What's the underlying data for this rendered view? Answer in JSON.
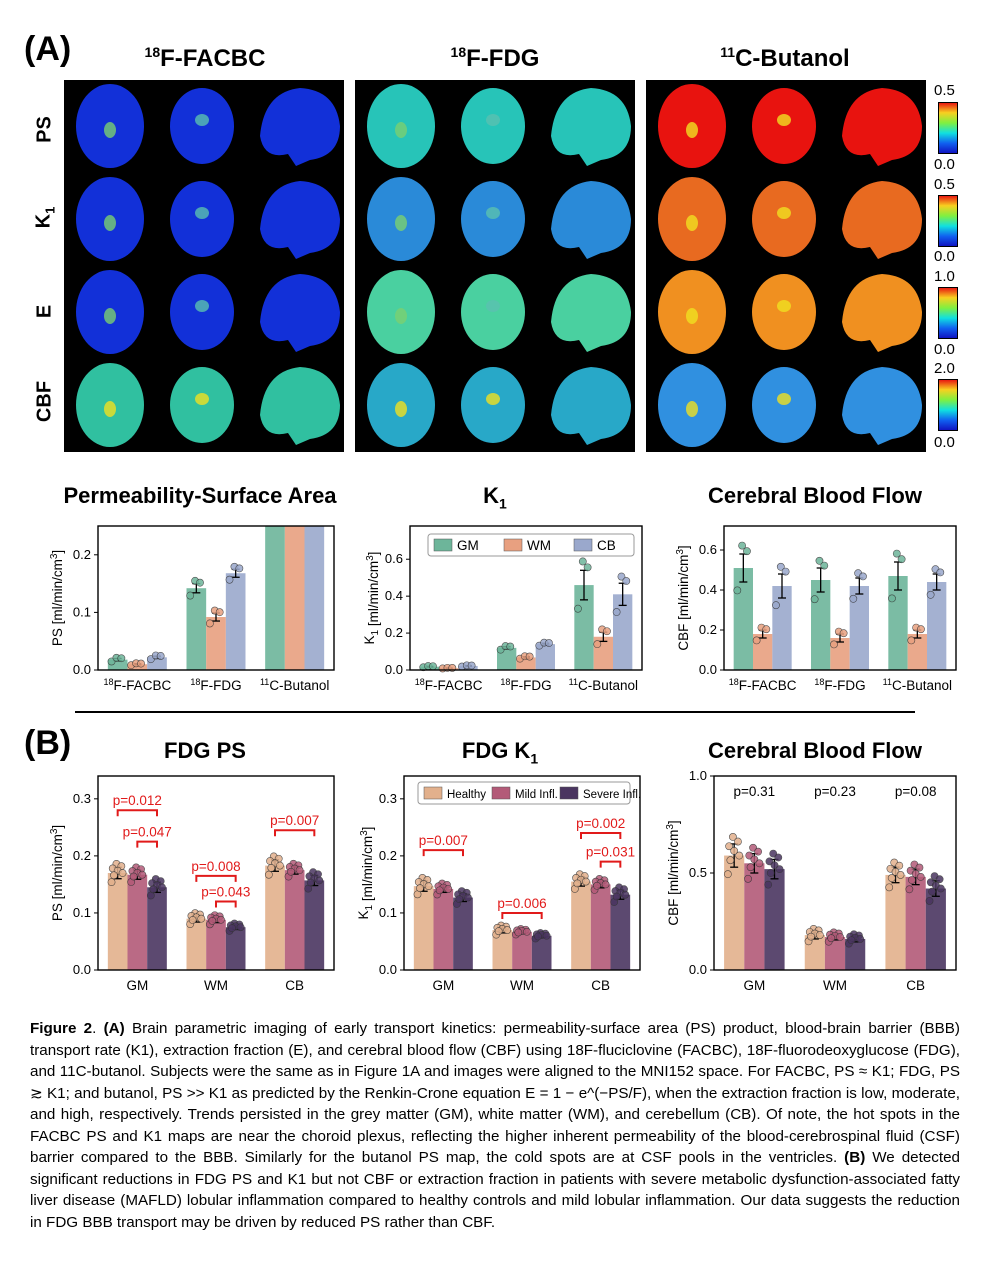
{
  "panelA": {
    "letter": "(A)",
    "tracers": [
      {
        "sup": "18",
        "name": "F-FACBC"
      },
      {
        "sup": "18",
        "name": "F-FDG"
      },
      {
        "sup": "11",
        "name": "C-Butanol"
      }
    ],
    "row_labels": [
      "PS",
      "K",
      "E",
      "CBF"
    ],
    "row_k_sub": "1",
    "colorbars": [
      {
        "max": "0.5",
        "min": "0.0"
      },
      {
        "max": "0.5",
        "min": "0.0"
      },
      {
        "max": "1.0",
        "min": "0.0"
      },
      {
        "max": "2.0",
        "min": "0.0"
      }
    ],
    "colors": {
      "hot": "#e8130f",
      "cool": "#1230d8",
      "mid": "#27c4b8",
      "gm": "#6db59a",
      "wm": "#e8a080",
      "cb": "#9aa8cc",
      "healthy": "#e2b08c",
      "mild": "#b35a78",
      "severe": "#4a3560",
      "sig": "#e11a1a"
    }
  },
  "panelA_charts": {
    "titles": [
      "Permeability-Surface Area",
      "K",
      "Cerebral Blood Flow"
    ],
    "title_k_sub": "1",
    "legend": [
      "GM",
      "WM",
      "CB"
    ]
  },
  "panelB": {
    "letter": "(B)",
    "titles": [
      "FDG PS",
      "FDG K",
      "Cerebral Blood Flow"
    ],
    "title_k_sub": "1",
    "legend": [
      "Healthy",
      "Mild Infl.",
      "Severe Infl."
    ]
  },
  "chart_data": [
    {
      "type": "bar",
      "title": "Permeability-Surface Area",
      "ylabel": "PS [ml/min/cm3]",
      "categories": [
        "18F-FACBC",
        "18F-FDG",
        "11C-Butanol"
      ],
      "ylim": [
        0,
        0.25
      ],
      "yticks": [
        "0.0",
        "0.1",
        "0.2"
      ],
      "series": [
        {
          "name": "GM",
          "values": [
            0.018,
            0.142,
            0.3
          ],
          "err": [
            0.002,
            0.008,
            0
          ]
        },
        {
          "name": "WM",
          "values": [
            0.01,
            0.092,
            0.3
          ],
          "err": [
            0.001,
            0.007,
            0
          ]
        },
        {
          "name": "CB",
          "values": [
            0.022,
            0.168,
            0.3
          ],
          "err": [
            0.002,
            0.007,
            0
          ]
        }
      ]
    },
    {
      "type": "bar",
      "title": "K1",
      "ylabel": "K1 [ml/min/cm3]",
      "categories": [
        "18F-FACBC",
        "18F-FDG",
        "11C-Butanol"
      ],
      "ylim": [
        0,
        0.78
      ],
      "yticks": [
        "0.0",
        "0.2",
        "0.4",
        "0.6"
      ],
      "legend": "top",
      "series": [
        {
          "name": "GM",
          "values": [
            0.018,
            0.12,
            0.46
          ],
          "err": [
            0.002,
            0.006,
            0.08
          ]
        },
        {
          "name": "WM",
          "values": [
            0.01,
            0.068,
            0.18
          ],
          "err": [
            0.001,
            0.004,
            0.025
          ]
        },
        {
          "name": "CB",
          "values": [
            0.022,
            0.14,
            0.41
          ],
          "err": [
            0.002,
            0.005,
            0.06
          ]
        }
      ]
    },
    {
      "type": "bar",
      "title": "Cerebral Blood Flow",
      "ylabel": "CBF [ml/min/cm3]",
      "categories": [
        "18F-FACBC",
        "18F-FDG",
        "11C-Butanol"
      ],
      "ylim": [
        0,
        0.72
      ],
      "yticks": [
        "0.0",
        "0.2",
        "0.4",
        "0.6"
      ],
      "series": [
        {
          "name": "GM",
          "values": [
            0.51,
            0.45,
            0.47
          ],
          "err": [
            0.07,
            0.06,
            0.07
          ]
        },
        {
          "name": "WM",
          "values": [
            0.18,
            0.16,
            0.18
          ],
          "err": [
            0.02,
            0.02,
            0.02
          ]
        },
        {
          "name": "CB",
          "values": [
            0.42,
            0.42,
            0.44
          ],
          "err": [
            0.06,
            0.04,
            0.04
          ]
        }
      ]
    },
    {
      "type": "bar",
      "title": "FDG PS",
      "ylabel": "PS [ml/min/cm3]",
      "categories": [
        "GM",
        "WM",
        "CB"
      ],
      "ylim": [
        0,
        0.34
      ],
      "yticks": [
        "0.0",
        "0.1",
        "0.2",
        "0.3"
      ],
      "series": [
        {
          "name": "Healthy",
          "values": [
            0.17,
            0.09,
            0.183
          ],
          "err": [
            0.01,
            0.006,
            0.01
          ]
        },
        {
          "name": "Mild Infl.",
          "values": [
            0.167,
            0.088,
            0.175
          ],
          "err": [
            0.008,
            0.005,
            0.007
          ]
        },
        {
          "name": "Severe Infl.",
          "values": [
            0.145,
            0.075,
            0.157
          ],
          "err": [
            0.009,
            0.004,
            0.009
          ]
        }
      ],
      "annotations": [
        "p=0.012",
        "p=0.047",
        "p=0.008",
        "p=0.043",
        "p=0.007"
      ]
    },
    {
      "type": "bar",
      "title": "FDG K1",
      "ylabel": "K1 [ml/min/cm3]",
      "categories": [
        "GM",
        "WM",
        "CB"
      ],
      "ylim": [
        0,
        0.34
      ],
      "yticks": [
        "0.0",
        "0.1",
        "0.2",
        "0.3"
      ],
      "legend": "top",
      "series": [
        {
          "name": "Healthy",
          "values": [
            0.147,
            0.07,
            0.155
          ],
          "err": [
            0.009,
            0.005,
            0.008
          ]
        },
        {
          "name": "Mild Infl.",
          "values": [
            0.142,
            0.067,
            0.15
          ],
          "err": [
            0.006,
            0.003,
            0.006
          ]
        },
        {
          "name": "Severe Infl.",
          "values": [
            0.127,
            0.06,
            0.132
          ],
          "err": [
            0.007,
            0.003,
            0.008
          ]
        }
      ],
      "annotations": [
        "p=0.007",
        "p=0.006",
        "p=0.002",
        "p=0.031"
      ]
    },
    {
      "type": "bar",
      "title": "Cerebral Blood Flow",
      "ylabel": "CBF [ml/min/cm3]",
      "categories": [
        "GM",
        "WM",
        "CB"
      ],
      "ylim": [
        0,
        1.0
      ],
      "yticks": [
        "0.0",
        "0.5",
        "1.0"
      ],
      "series": [
        {
          "name": "Healthy",
          "values": [
            0.59,
            0.18,
            0.49
          ],
          "err": [
            0.06,
            0.02,
            0.04
          ]
        },
        {
          "name": "Mild Infl.",
          "values": [
            0.55,
            0.17,
            0.48
          ],
          "err": [
            0.05,
            0.015,
            0.04
          ]
        },
        {
          "name": "Severe Infl.",
          "values": [
            0.52,
            0.16,
            0.42
          ],
          "err": [
            0.05,
            0.015,
            0.04
          ]
        }
      ],
      "annotations": [
        "p=0.31",
        "p=0.23",
        "p=0.08"
      ]
    }
  ],
  "caption": {
    "label": "Figure 2",
    "a_tag": "(A)",
    "b_tag": "(B)",
    "text_a": "Brain parametric imaging of early transport kinetics: permeability-surface area (PS) product, blood-brain barrier (BBB) transport rate (K1), extraction fraction (E), and cerebral blood flow (CBF) using 18F-fluciclovine (FACBC), 18F-fluorodeoxyglucose (FDG), and 11C-butanol. Subjects were the same as in Figure 1A and images were aligned to the MNI152 space. For FACBC, PS ≈ K1; FDG, PS ≳ K1; and butanol, PS >> K1 as predicted by the Renkin-Crone equation E = 1 − e^(−PS/F), when the extraction fraction is low, moderate, and high, respectively. Trends persisted in the grey matter (GM), white matter (WM), and cerebellum (CB). Of note, the hot spots in the FACBC PS and K1 maps are near the choroid plexus, reflecting the higher inherent permeability of the blood-cerebrospinal fluid (CSF) barrier compared to the BBB. Similarly for the butanol PS map, the cold spots are at CSF pools in the ventricles.",
    "text_b": "We detected significant reductions in FDG PS and K1 but not CBF or extraction fraction in patients with severe metabolic dysfunction-associated fatty liver disease (MAFLD) lobular inflammation compared to healthy controls and mild lobular inflammation. Our data suggests the reduction in FDG BBB transport may be driven by reduced PS rather than CBF."
  }
}
